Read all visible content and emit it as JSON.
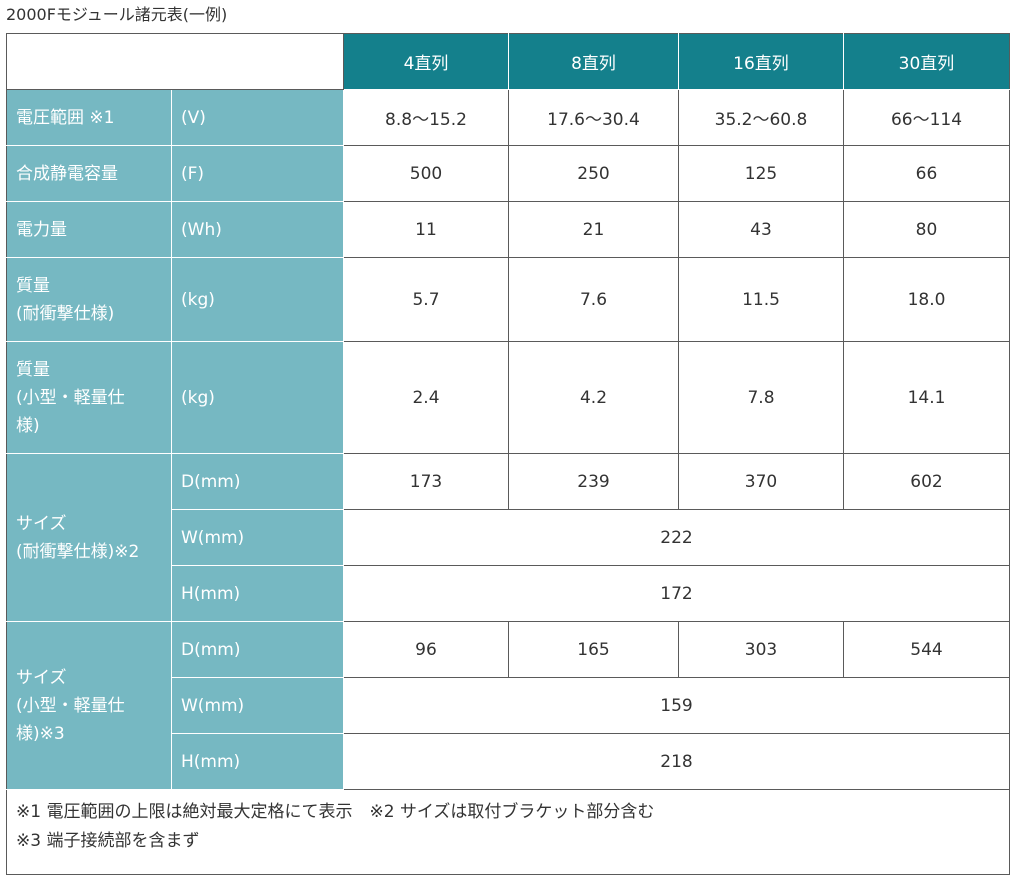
{
  "caption": "2000Fモジュール諸元表(一例)",
  "columns": [
    "4直列",
    "8直列",
    "16直列",
    "30直列"
  ],
  "rows": {
    "voltage": {
      "label": "電圧範囲 ※1",
      "unit": "(V)",
      "values": [
        "8.8～15.2",
        "17.6～30.4",
        "35.2～60.8",
        "66～114"
      ]
    },
    "capacity": {
      "label": "合成静電容量",
      "unit": "(F)",
      "values": [
        "500",
        "250",
        "125",
        "66"
      ]
    },
    "energy": {
      "label": "電力量",
      "unit": "(Wh)",
      "values": [
        "11",
        "21",
        "43",
        "80"
      ]
    },
    "mass_rugged": {
      "label_line1": "質量",
      "label_line2": "(耐衝撃仕様)",
      "unit": "(kg)",
      "values": [
        "5.7",
        "7.6",
        "11.5",
        "18.0"
      ]
    },
    "mass_compact": {
      "label_line1": "質量",
      "label_line2": "(小型・軽量仕",
      "label_line3": "様)",
      "unit": "(kg)",
      "values": [
        "2.4",
        "4.2",
        "7.8",
        "14.1"
      ]
    }
  },
  "size_rugged": {
    "label_line1": "サイズ",
    "label_line2": "(耐衝撃仕様)※2",
    "d_unit": "D(mm)",
    "d_values": [
      "173",
      "239",
      "370",
      "602"
    ],
    "w_unit": "W(mm)",
    "w_value": "222",
    "h_unit": "H(mm)",
    "h_value": "172"
  },
  "size_compact": {
    "label_line1": "サイズ",
    "label_line2": "(小型・軽量仕",
    "label_line3": "様)※3",
    "d_unit": "D(mm)",
    "d_values": [
      "96",
      "165",
      "303",
      "544"
    ],
    "w_unit": "W(mm)",
    "w_value": "159",
    "h_unit": "H(mm)",
    "h_value": "218"
  },
  "notes": {
    "line1": "※1 電圧範囲の上限は絶対最大定格にて表示　※2 サイズは取付ブラケット部分含む",
    "line2": "※3 端子接続部を含まず"
  },
  "colors": {
    "header": "#14808c",
    "row_header": "#76b8c2",
    "border": "#5a5a5a"
  }
}
